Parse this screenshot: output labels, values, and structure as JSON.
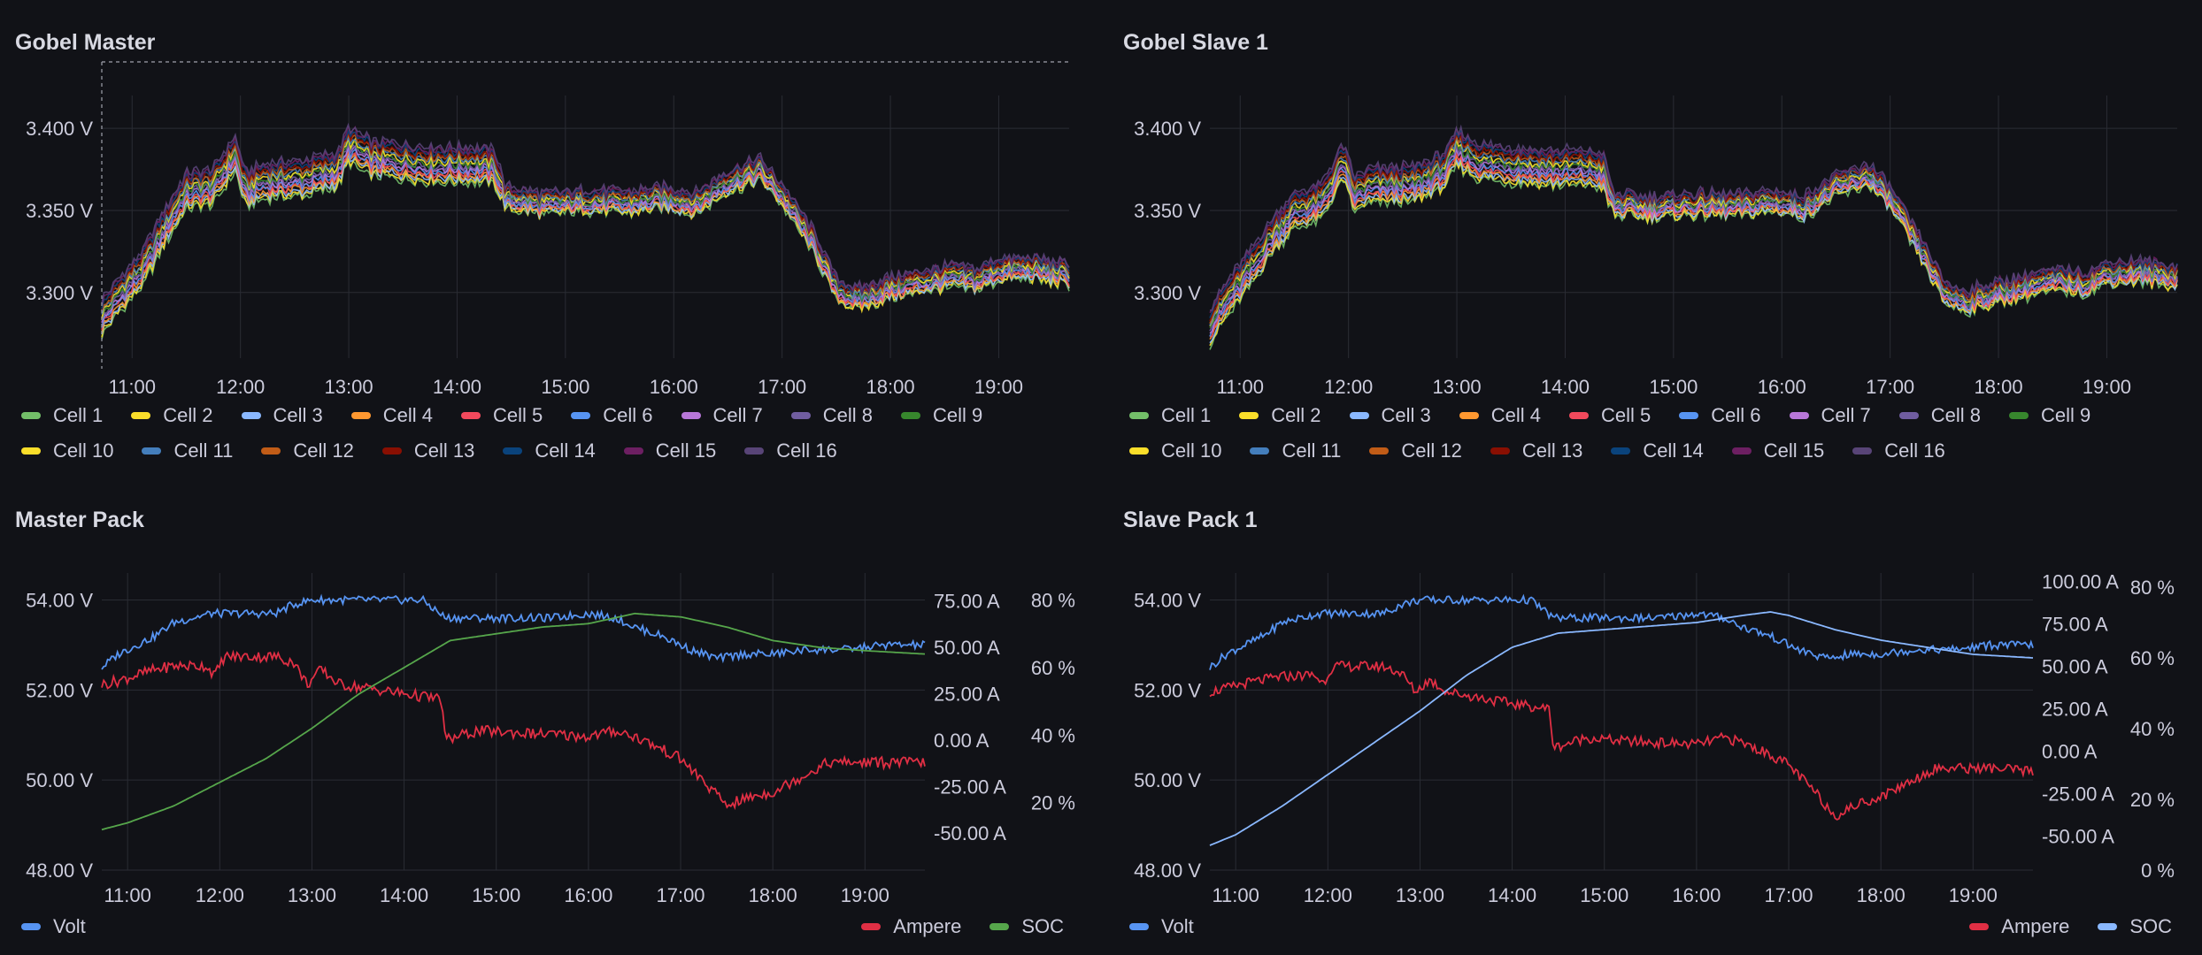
{
  "chart_data": [
    {
      "type": "line",
      "id": "gobel_master",
      "title": "Gobel Master",
      "x_ticks": [
        "11:00",
        "12:00",
        "13:00",
        "14:00",
        "15:00",
        "16:00",
        "17:00",
        "18:00",
        "19:00"
      ],
      "y_ticks": [
        "3.300 V",
        "3.350 V",
        "3.400 V"
      ],
      "ylim": [
        3.26,
        3.42
      ],
      "xlim": [
        10.72,
        19.65
      ],
      "legend_placement": "bottom",
      "series": [
        {
          "name": "Cell 1",
          "color": "#73bf69"
        },
        {
          "name": "Cell 2",
          "color": "#fade2a"
        },
        {
          "name": "Cell 3",
          "color": "#8ab8ff"
        },
        {
          "name": "Cell 4",
          "color": "#ff9830"
        },
        {
          "name": "Cell 5",
          "color": "#f2495c"
        },
        {
          "name": "Cell 6",
          "color": "#5794f2"
        },
        {
          "name": "Cell 7",
          "color": "#b877d9"
        },
        {
          "name": "Cell 8",
          "color": "#705da0"
        },
        {
          "name": "Cell 9",
          "color": "#37872d"
        },
        {
          "name": "Cell 10",
          "color": "#fade2a"
        },
        {
          "name": "Cell 11",
          "color": "#447ebc"
        },
        {
          "name": "Cell 12",
          "color": "#c15c17"
        },
        {
          "name": "Cell 13",
          "color": "#890f02"
        },
        {
          "name": "Cell 14",
          "color": "#0a437c"
        },
        {
          "name": "Cell 15",
          "color": "#6d1f62"
        },
        {
          "name": "Cell 16",
          "color": "#584477"
        }
      ],
      "base_curve": {
        "x": [
          10.72,
          10.9,
          11.1,
          11.3,
          11.5,
          11.75,
          11.95,
          12.05,
          12.2,
          12.6,
          12.9,
          13.0,
          13.2,
          13.5,
          13.8,
          14.2,
          14.35,
          14.45,
          14.8,
          15.2,
          15.6,
          15.9,
          16.0,
          16.2,
          16.5,
          16.8,
          17.0,
          17.3,
          17.5,
          17.7,
          18.0,
          18.3,
          18.6,
          18.8,
          19.0,
          19.3,
          19.65
        ],
        "y": [
          3.285,
          3.3,
          3.315,
          3.34,
          3.362,
          3.365,
          3.385,
          3.362,
          3.368,
          3.37,
          3.375,
          3.39,
          3.382,
          3.38,
          3.378,
          3.378,
          3.376,
          3.358,
          3.354,
          3.356,
          3.355,
          3.358,
          3.357,
          3.354,
          3.368,
          3.375,
          3.36,
          3.33,
          3.302,
          3.296,
          3.303,
          3.307,
          3.31,
          3.308,
          3.314,
          3.315,
          3.311
        ]
      }
    },
    {
      "type": "line",
      "id": "gobel_slave_1",
      "title": "Gobel Slave 1",
      "x_ticks": [
        "11:00",
        "12:00",
        "13:00",
        "14:00",
        "15:00",
        "16:00",
        "17:00",
        "18:00",
        "19:00"
      ],
      "y_ticks": [
        "3.300 V",
        "3.350 V",
        "3.400 V"
      ],
      "ylim": [
        3.26,
        3.42
      ],
      "xlim": [
        10.72,
        19.65
      ],
      "legend_placement": "bottom",
      "series": [
        {
          "name": "Cell 1",
          "color": "#73bf69"
        },
        {
          "name": "Cell 2",
          "color": "#fade2a"
        },
        {
          "name": "Cell 3",
          "color": "#8ab8ff"
        },
        {
          "name": "Cell 4",
          "color": "#ff9830"
        },
        {
          "name": "Cell 5",
          "color": "#f2495c"
        },
        {
          "name": "Cell 6",
          "color": "#5794f2"
        },
        {
          "name": "Cell 7",
          "color": "#b877d9"
        },
        {
          "name": "Cell 8",
          "color": "#705da0"
        },
        {
          "name": "Cell 9",
          "color": "#37872d"
        },
        {
          "name": "Cell 10",
          "color": "#fade2a"
        },
        {
          "name": "Cell 11",
          "color": "#447ebc"
        },
        {
          "name": "Cell 12",
          "color": "#c15c17"
        },
        {
          "name": "Cell 13",
          "color": "#890f02"
        },
        {
          "name": "Cell 14",
          "color": "#0a437c"
        },
        {
          "name": "Cell 15",
          "color": "#6d1f62"
        },
        {
          "name": "Cell 16",
          "color": "#584477"
        }
      ],
      "base_curve": {
        "x": [
          10.72,
          10.9,
          11.1,
          11.3,
          11.5,
          11.75,
          11.95,
          12.05,
          12.2,
          12.6,
          12.9,
          13.0,
          13.2,
          13.5,
          13.8,
          14.2,
          14.35,
          14.45,
          14.8,
          15.2,
          15.6,
          15.9,
          16.0,
          16.2,
          16.5,
          16.8,
          17.0,
          17.3,
          17.5,
          17.7,
          18.0,
          18.3,
          18.6,
          18.8,
          19.0,
          19.3,
          19.65
        ],
        "y": [
          3.28,
          3.298,
          3.315,
          3.335,
          3.35,
          3.355,
          3.38,
          3.36,
          3.365,
          3.366,
          3.375,
          3.388,
          3.38,
          3.378,
          3.376,
          3.376,
          3.374,
          3.354,
          3.352,
          3.354,
          3.353,
          3.356,
          3.355,
          3.352,
          3.365,
          3.372,
          3.358,
          3.325,
          3.3,
          3.295,
          3.3,
          3.305,
          3.308,
          3.306,
          3.312,
          3.313,
          3.31
        ]
      }
    },
    {
      "type": "line",
      "id": "master_pack",
      "title": "Master Pack",
      "x_ticks": [
        "11:00",
        "12:00",
        "13:00",
        "14:00",
        "15:00",
        "16:00",
        "17:00",
        "18:00",
        "19:00"
      ],
      "xlim": [
        10.72,
        19.65
      ],
      "y_left": {
        "ticks": [
          "48.00 V",
          "50.00 V",
          "52.00 V",
          "54.00 V"
        ],
        "ylim": [
          48,
          54.6
        ]
      },
      "y_right_ampere": {
        "ticks": [
          "-50.00 A",
          "-25.00 A",
          "0.00 A",
          "25.00 A",
          "50.00 A",
          "75.00 A"
        ],
        "ylim": [
          -70,
          90
        ]
      },
      "y_right_soc": {
        "ticks": [
          "20 %",
          "40 %",
          "60 %",
          "80 %"
        ],
        "ylim": [
          0,
          88
        ]
      },
      "legend_placement": "bottom",
      "series": [
        {
          "name": "Volt",
          "color": "#5794f2",
          "axis": "left",
          "x": [
            10.72,
            10.9,
            11.1,
            11.3,
            11.5,
            11.9,
            12.0,
            12.6,
            12.8,
            13.0,
            13.4,
            13.8,
            14.2,
            14.45,
            14.8,
            15.2,
            15.6,
            16.0,
            16.3,
            16.5,
            16.8,
            17.1,
            17.4,
            17.7,
            18.0,
            18.4,
            18.8,
            19.2,
            19.65
          ],
          "y": [
            52.5,
            52.8,
            53.0,
            53.2,
            53.5,
            53.7,
            53.7,
            53.7,
            53.9,
            54.0,
            54.0,
            54.0,
            54.0,
            53.6,
            53.6,
            53.6,
            53.6,
            53.7,
            53.6,
            53.4,
            53.2,
            52.9,
            52.7,
            52.8,
            52.8,
            52.9,
            52.9,
            53.0,
            53.0
          ]
        },
        {
          "name": "Ampere",
          "color": "#e02f44",
          "axis": "right_ampere",
          "x": [
            10.72,
            10.9,
            11.1,
            11.3,
            11.5,
            11.85,
            11.95,
            12.05,
            12.6,
            12.8,
            12.95,
            13.1,
            13.3,
            13.6,
            14.0,
            14.4,
            14.45,
            14.8,
            15.2,
            15.6,
            16.0,
            16.3,
            16.5,
            16.8,
            17.0,
            17.3,
            17.5,
            17.8,
            18.0,
            18.3,
            18.6,
            18.9,
            19.2,
            19.65
          ],
          "y": [
            30,
            32,
            35,
            38,
            40,
            40,
            35,
            45,
            45,
            42,
            30,
            38,
            30,
            28,
            25,
            22,
            0,
            5,
            4,
            3,
            2,
            5,
            2,
            -5,
            -10,
            -25,
            -35,
            -30,
            -28,
            -20,
            -12,
            -12,
            -12,
            -12
          ]
        },
        {
          "name": "SOC",
          "color": "#56a64b",
          "axis": "right_soc",
          "x": [
            10.72,
            11.0,
            11.5,
            12.0,
            12.5,
            13.0,
            13.5,
            14.0,
            14.5,
            15.0,
            15.5,
            16.0,
            16.5,
            17.0,
            17.5,
            18.0,
            18.5,
            19.0,
            19.65
          ],
          "y": [
            12,
            14,
            19,
            26,
            33,
            42,
            52,
            60,
            68,
            70,
            72,
            73,
            76,
            75,
            72,
            68,
            66,
            65,
            64
          ]
        }
      ]
    },
    {
      "type": "line",
      "id": "slave_pack_1",
      "title": "Slave Pack 1",
      "x_ticks": [
        "11:00",
        "12:00",
        "13:00",
        "14:00",
        "15:00",
        "16:00",
        "17:00",
        "18:00",
        "19:00"
      ],
      "xlim": [
        10.72,
        19.65
      ],
      "y_left": {
        "ticks": [
          "48.00 V",
          "50.00 V",
          "52.00 V",
          "54.00 V"
        ],
        "ylim": [
          48,
          54.6
        ]
      },
      "y_right_ampere": {
        "ticks": [
          "-50.00 A",
          "-25.00 A",
          "0.00 A",
          "25.00 A",
          "50.00 A",
          "75.00 A",
          "100.00 A"
        ],
        "ylim": [
          -70,
          105
        ]
      },
      "y_right_soc": {
        "ticks": [
          "0 %",
          "20 %",
          "40 %",
          "60 %",
          "80 %"
        ],
        "ylim": [
          0,
          84
        ]
      },
      "legend_placement": "bottom",
      "series": [
        {
          "name": "Volt",
          "color": "#5794f2",
          "axis": "left",
          "x": [
            10.72,
            10.9,
            11.1,
            11.3,
            11.5,
            11.9,
            12.0,
            12.6,
            12.8,
            13.0,
            13.4,
            13.8,
            14.2,
            14.45,
            14.8,
            15.2,
            15.6,
            16.0,
            16.3,
            16.5,
            16.8,
            17.1,
            17.4,
            17.7,
            18.0,
            18.4,
            18.8,
            19.2,
            19.65
          ],
          "y": [
            52.5,
            52.8,
            53.0,
            53.2,
            53.5,
            53.7,
            53.7,
            53.7,
            53.9,
            54.0,
            54.0,
            54.0,
            54.0,
            53.6,
            53.6,
            53.6,
            53.6,
            53.7,
            53.6,
            53.4,
            53.2,
            52.9,
            52.7,
            52.8,
            52.8,
            52.9,
            52.9,
            53.0,
            53.0
          ]
        },
        {
          "name": "Ampere",
          "color": "#e02f44",
          "axis": "right_ampere",
          "x": [
            10.72,
            10.9,
            11.1,
            11.3,
            11.5,
            11.85,
            11.95,
            12.05,
            12.6,
            12.8,
            12.95,
            13.1,
            13.3,
            13.6,
            14.0,
            14.4,
            14.45,
            14.8,
            15.2,
            15.6,
            16.0,
            16.3,
            16.5,
            16.8,
            17.0,
            17.3,
            17.5,
            17.8,
            18.0,
            18.3,
            18.6,
            18.9,
            19.2,
            19.65
          ],
          "y": [
            35,
            37,
            40,
            42,
            44,
            45,
            40,
            50,
            50,
            46,
            35,
            42,
            35,
            32,
            28,
            25,
            2,
            8,
            6,
            5,
            4,
            8,
            5,
            -2,
            -8,
            -25,
            -38,
            -30,
            -27,
            -18,
            -10,
            -10,
            -10,
            -12
          ]
        },
        {
          "name": "SOC",
          "color": "#8ab8ff",
          "axis": "right_soc",
          "x": [
            10.72,
            11.0,
            11.5,
            12.0,
            12.5,
            13.0,
            13.5,
            14.0,
            14.5,
            15.0,
            15.5,
            16.0,
            16.5,
            16.8,
            17.0,
            17.5,
            18.0,
            18.5,
            19.0,
            19.65
          ],
          "y": [
            7,
            10,
            18,
            27,
            36,
            45,
            55,
            63,
            67,
            68,
            69,
            70,
            72,
            73,
            72,
            68,
            65,
            63,
            61,
            60
          ]
        }
      ]
    }
  ]
}
